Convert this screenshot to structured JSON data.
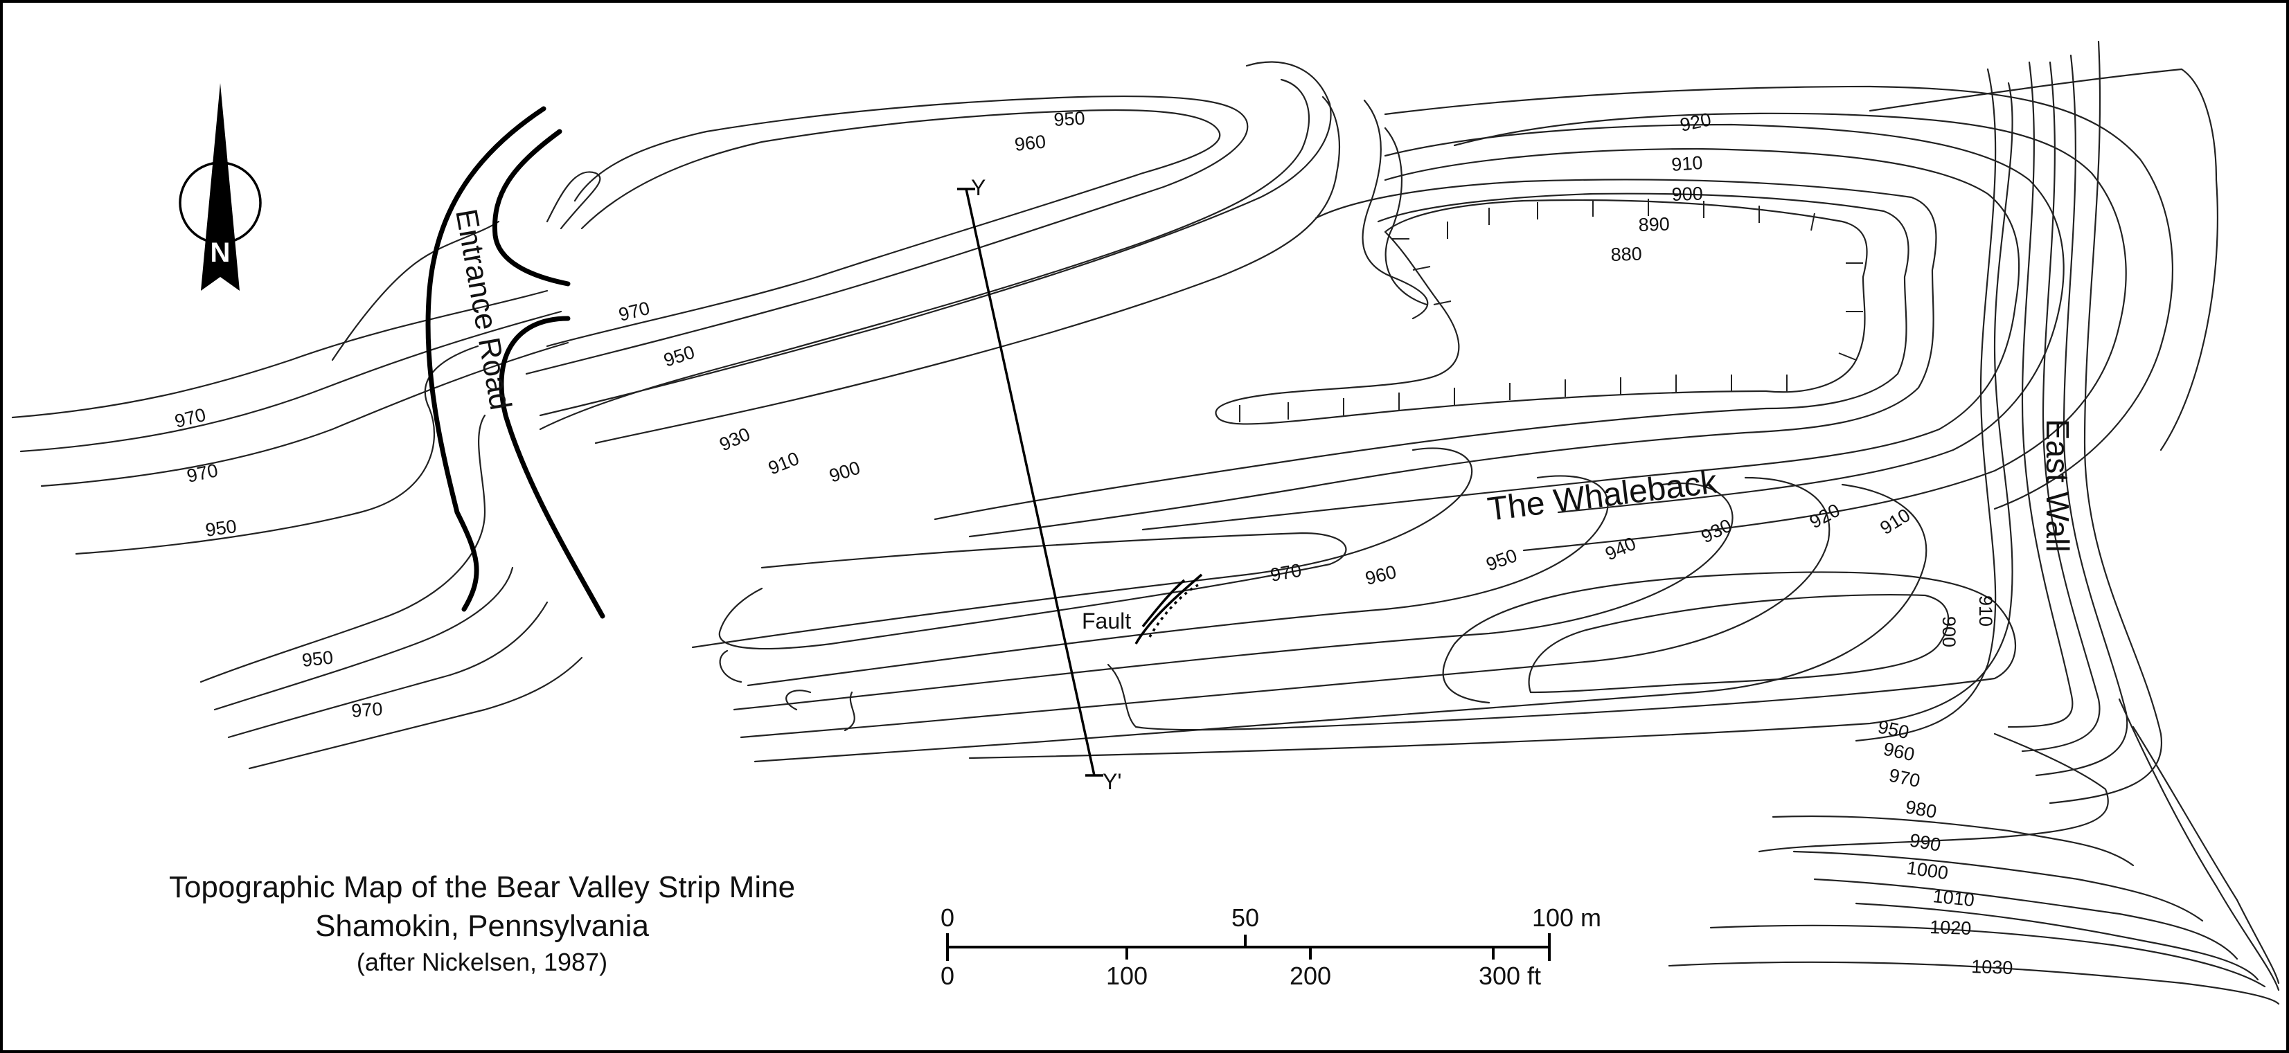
{
  "map": {
    "title": "Topographic Map of the Bear Valley Strip Mine",
    "subtitle": "Shamokin, Pennsylvania",
    "citation": "(after Nickelsen, 1987)",
    "north_label": "N",
    "features": {
      "entrance_road": "Entrance Road",
      "whaleback": "The Whaleback",
      "east_wall": "East Wall",
      "fault": "Fault",
      "section_start": "Y",
      "section_end": "Y'"
    },
    "contour_labels": [
      "970",
      "970",
      "950",
      "950",
      "970",
      "950",
      "960",
      "970",
      "950",
      "930",
      "910",
      "900",
      "920",
      "910",
      "900",
      "890",
      "880",
      "970",
      "960",
      "950",
      "940",
      "930",
      "920",
      "910",
      "910",
      "900",
      "950",
      "960",
      "970",
      "980",
      "990",
      "1000",
      "1010",
      "1020",
      "1030"
    ],
    "scale_bar": {
      "metric_ticks": [
        "0",
        "50",
        "100 m"
      ],
      "imperial_ticks": [
        "0",
        "100",
        "200",
        "300 ft"
      ]
    }
  }
}
